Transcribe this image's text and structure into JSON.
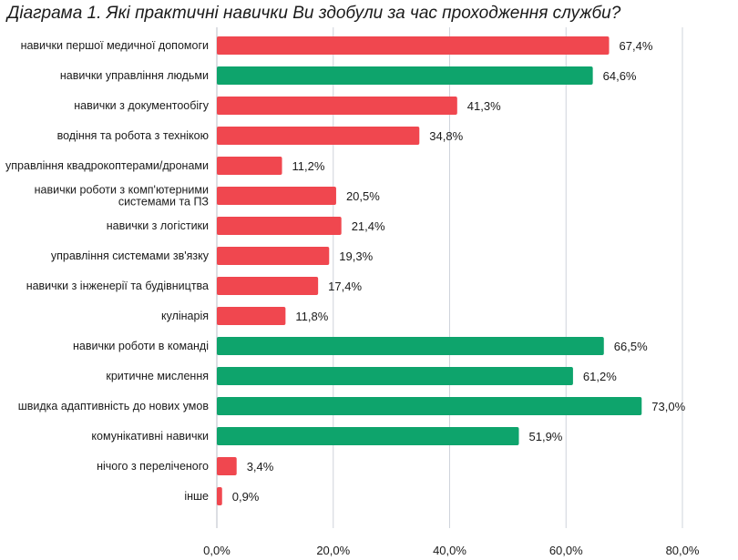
{
  "chart_data": {
    "type": "bar",
    "orientation": "horizontal",
    "title": "Діаграма 1. Які практичні навички Ви здобули за час проходження служби?",
    "xlim": [
      0,
      80
    ],
    "x_ticks": [
      "0,0%",
      "20,0%",
      "40,0%",
      "60,0%",
      "80,0%"
    ],
    "grid": "vertical",
    "colors": {
      "red": "#f0474f",
      "green": "#0ea46c"
    },
    "categories": [
      {
        "label": [
          "навички першої медичної допомоги"
        ],
        "value": 67.4,
        "display": "67,4%",
        "color": "red"
      },
      {
        "label": [
          "навички управління людьми"
        ],
        "value": 64.6,
        "display": "64,6%",
        "color": "green"
      },
      {
        "label": [
          "навички з документообігу"
        ],
        "value": 41.3,
        "display": "41,3%",
        "color": "red"
      },
      {
        "label": [
          "водіння та робота з технікою"
        ],
        "value": 34.8,
        "display": "34,8%",
        "color": "red"
      },
      {
        "label": [
          "управління квадрокоптерами/дронами"
        ],
        "value": 11.2,
        "display": "11,2%",
        "color": "red"
      },
      {
        "label": [
          "навички роботи з комп'ютерними",
          "системами та ПЗ"
        ],
        "value": 20.5,
        "display": "20,5%",
        "color": "red"
      },
      {
        "label": [
          "навички з логістики"
        ],
        "value": 21.4,
        "display": "21,4%",
        "color": "red"
      },
      {
        "label": [
          "управління системами зв'язку"
        ],
        "value": 19.3,
        "display": "19,3%",
        "color": "red"
      },
      {
        "label": [
          "навички з інженерії та будівництва"
        ],
        "value": 17.4,
        "display": "17,4%",
        "color": "red"
      },
      {
        "label": [
          "кулінарія"
        ],
        "value": 11.8,
        "display": "11,8%",
        "color": "red"
      },
      {
        "label": [
          "навички роботи в команді"
        ],
        "value": 66.5,
        "display": "66,5%",
        "color": "green"
      },
      {
        "label": [
          "критичне мислення"
        ],
        "value": 61.2,
        "display": "61,2%",
        "color": "green"
      },
      {
        "label": [
          "швидка адаптивність до нових умов"
        ],
        "value": 73.0,
        "display": "73,0%",
        "color": "green"
      },
      {
        "label": [
          "комунікативні навички"
        ],
        "value": 51.9,
        "display": "51,9%",
        "color": "green"
      },
      {
        "label": [
          "нічого з переліченого"
        ],
        "value": 3.4,
        "display": "3,4%",
        "color": "red"
      },
      {
        "label": [
          "інше"
        ],
        "value": 0.9,
        "display": "0,9%",
        "color": "red"
      }
    ]
  }
}
